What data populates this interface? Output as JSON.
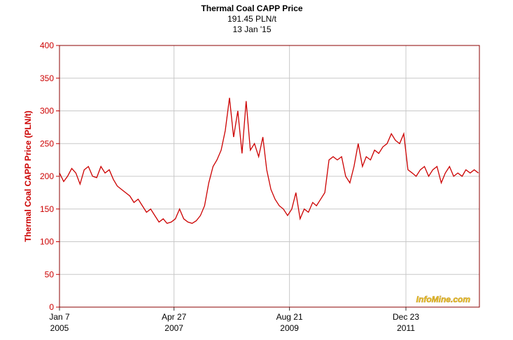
{
  "chart_data": {
    "type": "line",
    "title": "Thermal Coal CAPP Price",
    "subtitle": "191.45 PLN/t",
    "date_label": "13 Jan '15",
    "y_label": "Thermal Coal CAPP Price (PLN/t)",
    "watermark": "InfoMine.com",
    "x": [
      "2005-01-07",
      "2005-02-07",
      "2005-03-07",
      "2005-04-07",
      "2005-05-07",
      "2005-06-07",
      "2005-07-07",
      "2005-08-07",
      "2005-09-07",
      "2005-10-07",
      "2005-11-07",
      "2005-12-07",
      "2006-01-07",
      "2006-02-07",
      "2006-03-07",
      "2006-04-07",
      "2006-05-07",
      "2006-06-07",
      "2006-07-07",
      "2006-08-07",
      "2006-09-07",
      "2006-10-07",
      "2006-11-07",
      "2006-12-07",
      "2007-01-07",
      "2007-02-07",
      "2007-03-07",
      "2007-04-07",
      "2007-05-07",
      "2007-06-07",
      "2007-07-07",
      "2007-08-07",
      "2007-09-07",
      "2007-10-07",
      "2007-11-07",
      "2007-12-07",
      "2008-01-07",
      "2008-02-07",
      "2008-03-07",
      "2008-04-07",
      "2008-05-07",
      "2008-06-07",
      "2008-07-07",
      "2008-08-07",
      "2008-09-07",
      "2008-10-07",
      "2008-11-07",
      "2008-12-07",
      "2009-01-07",
      "2009-02-07",
      "2009-03-07",
      "2009-04-07",
      "2009-05-07",
      "2009-06-07",
      "2009-07-07",
      "2009-08-07",
      "2009-09-07",
      "2009-10-07",
      "2009-11-07",
      "2009-12-07",
      "2010-01-07",
      "2010-02-07",
      "2010-03-07",
      "2010-04-07",
      "2010-05-07",
      "2010-06-07",
      "2010-07-07",
      "2010-08-07",
      "2010-09-07",
      "2010-10-07",
      "2010-11-07",
      "2010-12-07",
      "2011-01-07",
      "2011-02-07",
      "2011-03-07",
      "2011-04-07",
      "2011-05-07",
      "2011-06-07",
      "2011-07-07",
      "2011-08-07",
      "2011-09-07",
      "2011-10-07",
      "2011-11-07",
      "2011-12-07",
      "2012-01-07",
      "2012-02-07",
      "2012-03-07",
      "2012-04-07",
      "2012-05-07",
      "2012-06-07",
      "2012-07-07",
      "2012-08-07",
      "2012-09-07",
      "2012-10-07",
      "2012-11-07",
      "2012-12-07",
      "2013-01-07",
      "2013-02-07",
      "2013-03-07",
      "2013-04-07",
      "2013-05-07",
      "2013-06-07"
    ],
    "series": [
      {
        "name": "Thermal Coal CAPP Price",
        "color": "#cc0000",
        "values": [
          205,
          192,
          200,
          212,
          205,
          188,
          210,
          215,
          200,
          198,
          215,
          205,
          210,
          195,
          185,
          180,
          175,
          170,
          160,
          165,
          155,
          145,
          150,
          140,
          130,
          135,
          128,
          130,
          135,
          150,
          135,
          130,
          128,
          132,
          140,
          155,
          190,
          215,
          225,
          240,
          270,
          320,
          260,
          300,
          235,
          315,
          240,
          250,
          230,
          260,
          210,
          180,
          165,
          155,
          150,
          140,
          150,
          175,
          135,
          150,
          145,
          160,
          155,
          165,
          175,
          225,
          230,
          225,
          230,
          200,
          190,
          215,
          250,
          215,
          230,
          225,
          240,
          235,
          245,
          250,
          265,
          255,
          250,
          265,
          210,
          205,
          200,
          210,
          215,
          200,
          210,
          215,
          190,
          205,
          215,
          200,
          205,
          200,
          210,
          205,
          210,
          205
        ]
      }
    ],
    "xlim": [
      "2005-01-07",
      "2013-06-14"
    ],
    "xticks": [
      {
        "value": "2005-01-07",
        "label": [
          "Jan 7",
          "2005"
        ]
      },
      {
        "value": "2007-04-27",
        "label": [
          "Apr 27",
          "2007"
        ]
      },
      {
        "value": "2009-08-21",
        "label": [
          "Aug 21",
          "2009"
        ]
      },
      {
        "value": "2011-12-23",
        "label": [
          "Dec 23",
          "2011"
        ]
      }
    ],
    "ylim": [
      0,
      400
    ],
    "yticks": [
      0,
      50,
      100,
      150,
      200,
      250,
      300,
      350,
      400
    ],
    "grid": true
  }
}
